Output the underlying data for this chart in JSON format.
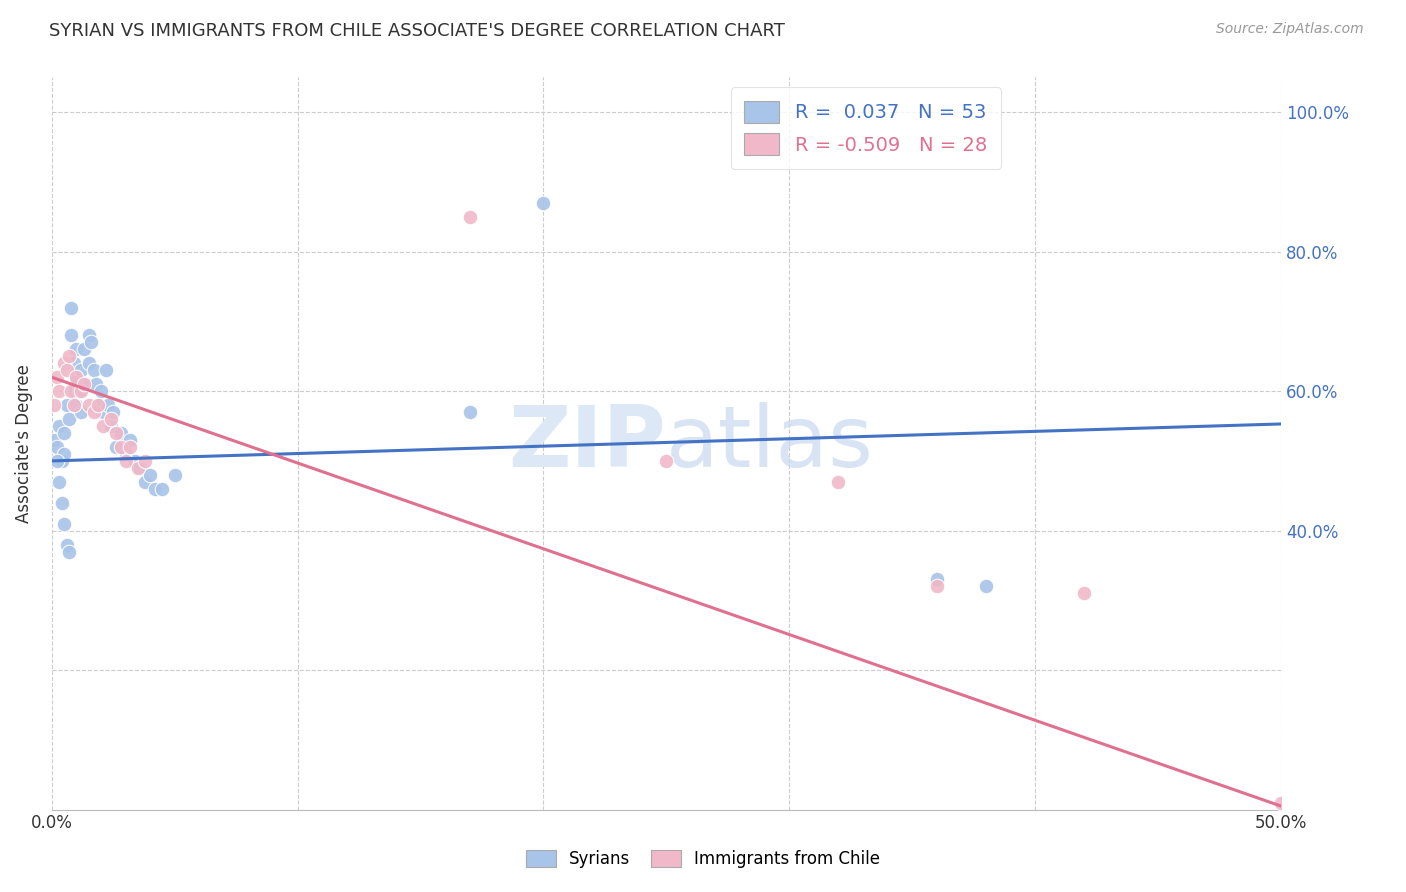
{
  "title": "SYRIAN VS IMMIGRANTS FROM CHILE ASSOCIATE'S DEGREE CORRELATION CHART",
  "source": "Source: ZipAtlas.com",
  "ylabel": "Associate's Degree",
  "x_range": [
    0.0,
    0.5
  ],
  "y_range": [
    0.0,
    1.05
  ],
  "right_y_ticks": [
    0.4,
    0.6,
    0.8,
    1.0
  ],
  "right_y_labels": [
    "40.0%",
    "60.0%",
    "80.0%",
    "100.0%"
  ],
  "x_ticks": [
    0.0,
    0.1,
    0.2,
    0.3,
    0.4,
    0.5
  ],
  "x_tick_labels": [
    "0.0%",
    "",
    "",
    "",
    "",
    "50.0%"
  ],
  "blue_color": "#a8c4e8",
  "pink_color": "#f0b8c8",
  "line_blue": "#4472c4",
  "line_pink": "#e07090",
  "watermark_color": "#dce8f5",
  "blue_R": 0.037,
  "blue_N": 53,
  "pink_R": -0.509,
  "pink_N": 28,
  "syrians_x": [
    0.001,
    0.002,
    0.003,
    0.004,
    0.005,
    0.005,
    0.006,
    0.007,
    0.008,
    0.008,
    0.009,
    0.009,
    0.01,
    0.01,
    0.01,
    0.011,
    0.012,
    0.012,
    0.013,
    0.014,
    0.015,
    0.015,
    0.016,
    0.017,
    0.018,
    0.019,
    0.02,
    0.021,
    0.022,
    0.023,
    0.024,
    0.025,
    0.026,
    0.028,
    0.03,
    0.032,
    0.034,
    0.036,
    0.038,
    0.04,
    0.042,
    0.045,
    0.05,
    0.17,
    0.2,
    0.36,
    0.38,
    0.002,
    0.003,
    0.004,
    0.005,
    0.006,
    0.007
  ],
  "syrians_y": [
    0.53,
    0.52,
    0.55,
    0.5,
    0.54,
    0.51,
    0.58,
    0.56,
    0.72,
    0.68,
    0.64,
    0.6,
    0.66,
    0.62,
    0.58,
    0.6,
    0.63,
    0.57,
    0.66,
    0.61,
    0.68,
    0.64,
    0.67,
    0.63,
    0.61,
    0.58,
    0.6,
    0.57,
    0.63,
    0.58,
    0.55,
    0.57,
    0.52,
    0.54,
    0.51,
    0.53,
    0.5,
    0.49,
    0.47,
    0.48,
    0.46,
    0.46,
    0.48,
    0.57,
    0.87,
    0.33,
    0.32,
    0.5,
    0.47,
    0.44,
    0.41,
    0.38,
    0.37
  ],
  "chile_x": [
    0.001,
    0.002,
    0.003,
    0.005,
    0.006,
    0.007,
    0.008,
    0.009,
    0.01,
    0.012,
    0.013,
    0.015,
    0.017,
    0.019,
    0.021,
    0.024,
    0.026,
    0.028,
    0.03,
    0.032,
    0.035,
    0.038,
    0.17,
    0.25,
    0.32,
    0.36,
    0.42,
    0.5
  ],
  "chile_y": [
    0.58,
    0.62,
    0.6,
    0.64,
    0.63,
    0.65,
    0.6,
    0.58,
    0.62,
    0.6,
    0.61,
    0.58,
    0.57,
    0.58,
    0.55,
    0.56,
    0.54,
    0.52,
    0.5,
    0.52,
    0.49,
    0.5,
    0.85,
    0.5,
    0.47,
    0.32,
    0.31,
    0.01
  ],
  "blue_line_x": [
    0.0,
    0.5
  ],
  "blue_line_y": [
    0.5,
    0.553
  ],
  "pink_line_x": [
    0.0,
    0.5
  ],
  "pink_line_y": [
    0.62,
    0.005
  ]
}
